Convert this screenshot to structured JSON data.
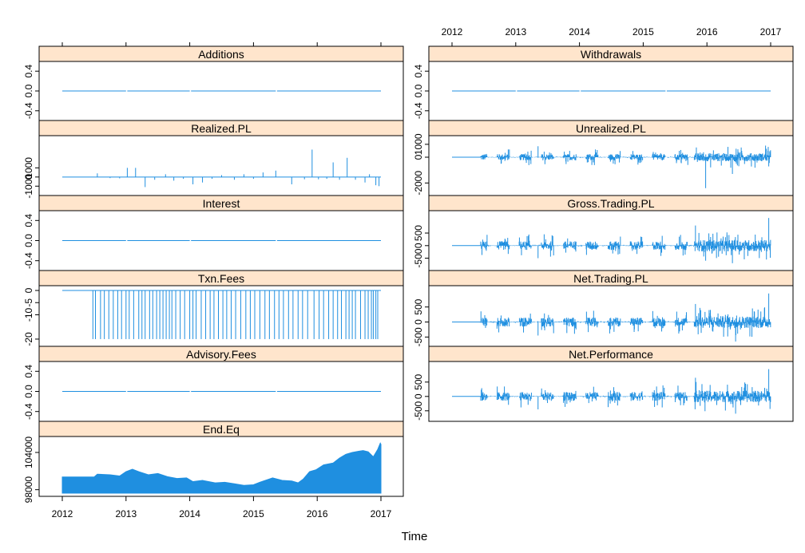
{
  "colors": {
    "strip": "#ffe5cc",
    "line": "#1f8fe0",
    "frame": "#000000",
    "background": "#ffffff"
  },
  "x_axis": {
    "label": "Time",
    "ticks": [
      "2012",
      "2013",
      "2014",
      "2015",
      "2016",
      "2017"
    ],
    "range": [
      2012,
      2017
    ]
  },
  "chart_data": [
    {
      "type": "line",
      "title": "Additions",
      "ylim": [
        -0.5,
        0.5
      ],
      "yticks": [
        "-0.4",
        "0.0",
        "0.4"
      ],
      "yticks_values": [
        -0.4,
        0.0,
        0.4
      ],
      "series": [
        {
          "style": "flat",
          "value": 0
        }
      ]
    },
    {
      "type": "line",
      "title": "Withdrawals",
      "ylim": [
        -0.5,
        0.5
      ],
      "yticks": [
        "-0.4",
        "0.0",
        "0.4"
      ],
      "yticks_values": [
        -0.4,
        0.0,
        0.4
      ],
      "series": [
        {
          "style": "flat",
          "value": 0
        }
      ]
    },
    {
      "type": "line",
      "title": "Realized.PL",
      "ylim": [
        -1500,
        4000
      ],
      "yticks": [
        "-1000",
        "0",
        "1000"
      ],
      "yticks_values": [
        -1000,
        0,
        1000
      ],
      "series": [
        {
          "style": "spikes",
          "points": [
            [
              2012.55,
              400
            ],
            [
              2012.75,
              -120
            ],
            [
              2012.9,
              -150
            ],
            [
              2013.02,
              1000
            ],
            [
              2013.15,
              1000
            ],
            [
              2013.3,
              -1100
            ],
            [
              2013.45,
              -300
            ],
            [
              2013.62,
              300
            ],
            [
              2013.75,
              -400
            ],
            [
              2013.9,
              -200
            ],
            [
              2014.05,
              -800
            ],
            [
              2014.2,
              -600
            ],
            [
              2014.35,
              -200
            ],
            [
              2014.5,
              200
            ],
            [
              2014.7,
              -300
            ],
            [
              2014.85,
              300
            ],
            [
              2015.0,
              -200
            ],
            [
              2015.15,
              500
            ],
            [
              2015.35,
              700
            ],
            [
              2015.6,
              -800
            ],
            [
              2015.8,
              -250
            ],
            [
              2015.92,
              3000
            ],
            [
              2016.02,
              -250
            ],
            [
              2016.15,
              -200
            ],
            [
              2016.25,
              1600
            ],
            [
              2016.35,
              -300
            ],
            [
              2016.47,
              2100
            ],
            [
              2016.6,
              -300
            ],
            [
              2016.75,
              -600
            ],
            [
              2016.82,
              300
            ],
            [
              2016.92,
              -900
            ],
            [
              2016.97,
              -1000
            ]
          ]
        }
      ]
    },
    {
      "type": "line",
      "title": "Unrealized.PL",
      "ylim": [
        -2600,
        1300
      ],
      "yticks": [
        "-2000",
        "0",
        "1000"
      ],
      "yticks_values": [
        -2000,
        0,
        1000
      ],
      "series": [
        {
          "style": "noise",
          "start": 2012.45,
          "amplitude": 350,
          "extremes": [
            [
              2012.9,
              600
            ],
            [
              2013.35,
              850
            ],
            [
              2014.25,
              600
            ],
            [
              2015.7,
              -600
            ],
            [
              2015.98,
              -2400
            ],
            [
              2016.4,
              -1300
            ],
            [
              2016.5,
              -700
            ],
            [
              2016.92,
              900
            ]
          ]
        }
      ]
    },
    {
      "type": "line",
      "title": "Interest",
      "ylim": [
        -0.5,
        0.5
      ],
      "yticks": [
        "-0.4",
        "0.0",
        "0.4"
      ],
      "yticks_values": [
        -0.4,
        0.0,
        0.4
      ],
      "series": [
        {
          "style": "flat",
          "value": 0
        }
      ]
    },
    {
      "type": "line",
      "title": "Gross.Trading.PL",
      "ylim": [
        -800,
        1200
      ],
      "yticks": [
        "-500",
        "0",
        "500"
      ],
      "yticks_values": [
        -500,
        0,
        500
      ],
      "series": [
        {
          "style": "noise",
          "start": 2012.45,
          "amplitude": 250,
          "extremes": [
            [
              2013.35,
              -500
            ],
            [
              2015.98,
              -600
            ],
            [
              2016.4,
              -700
            ],
            [
              2016.97,
              1100
            ],
            [
              2015.82,
              800
            ]
          ]
        }
      ]
    },
    {
      "type": "line",
      "title": "Txn.Fees",
      "ylim": [
        -21,
        0
      ],
      "yticks": [
        "-20",
        "-10",
        "-5",
        "0"
      ],
      "yticks_values": [
        -20,
        -10,
        -5,
        0
      ],
      "series": [
        {
          "style": "negative-spikes",
          "value": -20,
          "x": [
            2012.48,
            2012.52,
            2012.6,
            2012.66,
            2012.73,
            2012.8,
            2012.87,
            2012.93,
            2013.0,
            2013.05,
            2013.12,
            2013.2,
            2013.25,
            2013.3,
            2013.37,
            2013.42,
            2013.48,
            2013.53,
            2013.58,
            2013.63,
            2013.68,
            2013.72,
            2013.78,
            2013.85,
            2013.92,
            2014.0,
            2014.05,
            2014.1,
            2014.18,
            2014.25,
            2014.32,
            2014.38,
            2014.45,
            2014.52,
            2014.58,
            2014.65,
            2014.72,
            2014.8,
            2014.88,
            2014.95,
            2015.02,
            2015.1,
            2015.18,
            2015.25,
            2015.33,
            2015.4,
            2015.47,
            2015.55,
            2015.62,
            2015.7,
            2015.77,
            2015.85,
            2015.95,
            2016.03,
            2016.1,
            2016.18,
            2016.25,
            2016.32,
            2016.38,
            2016.45,
            2016.5,
            2016.55,
            2016.6,
            2016.68,
            2016.75,
            2016.8,
            2016.85,
            2016.88,
            2016.92,
            2016.95
          ]
        }
      ]
    },
    {
      "type": "line",
      "title": "Net.Trading.PL",
      "ylim": [
        -650,
        1050
      ],
      "yticks": [
        "-500",
        "0",
        "500"
      ],
      "yticks_values": [
        -500,
        0,
        500
      ],
      "series": [
        {
          "style": "noise",
          "start": 2012.45,
          "amplitude": 220,
          "extremes": [
            [
              2013.35,
              -450
            ],
            [
              2016.45,
              -650
            ],
            [
              2016.97,
              950
            ],
            [
              2015.82,
              600
            ]
          ]
        }
      ]
    },
    {
      "type": "line",
      "title": "Advisory.Fees",
      "ylim": [
        -0.5,
        0.5
      ],
      "yticks": [
        "-0.4",
        "0.0",
        "0.4"
      ],
      "yticks_values": [
        -0.4,
        0.0,
        0.4
      ],
      "series": [
        {
          "style": "flat",
          "value": 0
        }
      ]
    },
    {
      "type": "line",
      "title": "Net.Performance",
      "ylim": [
        -700,
        1050
      ],
      "yticks": [
        "-500",
        "0",
        "500"
      ],
      "yticks_values": [
        -500,
        0,
        500
      ],
      "series": [
        {
          "style": "noise",
          "start": 2012.45,
          "amplitude": 220,
          "extremes": [
            [
              2013.35,
              -450
            ],
            [
              2016.45,
              -600
            ],
            [
              2016.97,
              950
            ],
            [
              2015.82,
              650
            ]
          ]
        }
      ]
    },
    {
      "type": "area",
      "title": "End.Eq",
      "ylim": [
        97700,
        105800
      ],
      "yticks": [
        "98000",
        "104000"
      ],
      "yticks_values": [
        98000,
        104000
      ],
      "series": [
        {
          "style": "area",
          "points": [
            [
              2012.0,
              100050
            ],
            [
              2012.5,
              100050
            ],
            [
              2012.55,
              100500
            ],
            [
              2012.75,
              100400
            ],
            [
              2012.9,
              100200
            ],
            [
              2013.0,
              100900
            ],
            [
              2013.1,
              101300
            ],
            [
              2013.2,
              100900
            ],
            [
              2013.35,
              100400
            ],
            [
              2013.5,
              100600
            ],
            [
              2013.65,
              100100
            ],
            [
              2013.8,
              99800
            ],
            [
              2013.95,
              99900
            ],
            [
              2014.05,
              99300
            ],
            [
              2014.2,
              99500
            ],
            [
              2014.4,
              99100
            ],
            [
              2014.55,
              99200
            ],
            [
              2014.7,
              98950
            ],
            [
              2014.85,
              98700
            ],
            [
              2015.0,
              98800
            ],
            [
              2015.1,
              99200
            ],
            [
              2015.3,
              99900
            ],
            [
              2015.45,
              99500
            ],
            [
              2015.6,
              99400
            ],
            [
              2015.7,
              99100
            ],
            [
              2015.78,
              99700
            ],
            [
              2015.88,
              100900
            ],
            [
              2015.98,
              101200
            ],
            [
              2016.1,
              102000
            ],
            [
              2016.25,
              102300
            ],
            [
              2016.35,
              103100
            ],
            [
              2016.45,
              103700
            ],
            [
              2016.55,
              104000
            ],
            [
              2016.65,
              104200
            ],
            [
              2016.72,
              104300
            ],
            [
              2016.8,
              104100
            ],
            [
              2016.88,
              103300
            ],
            [
              2016.95,
              104500
            ],
            [
              2016.99,
              105500
            ],
            [
              2017.0,
              105300
            ]
          ]
        }
      ]
    }
  ]
}
